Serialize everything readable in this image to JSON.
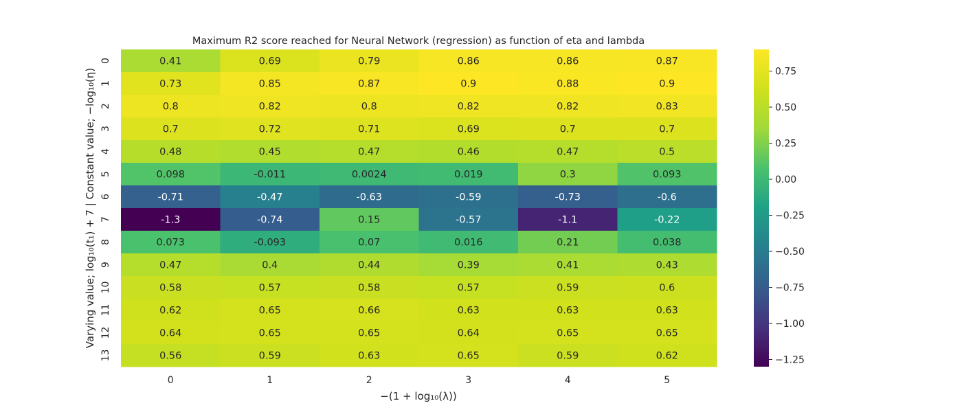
{
  "chart_data": {
    "type": "heatmap",
    "title": "Maximum R2 score reached for Neural Network (regression) as function of eta and lambda",
    "xlabel": "−(1 + log₁₀(λ))",
    "ylabel": "Varying value; log₁₀(t₁) + 7 | Constant value; −log₁₀(η)",
    "x_categories": [
      "0",
      "1",
      "2",
      "3",
      "4",
      "5"
    ],
    "y_categories": [
      "0",
      "1",
      "2",
      "3",
      "4",
      "5",
      "6",
      "7",
      "8",
      "9",
      "10",
      "11",
      "12",
      "13"
    ],
    "values": [
      [
        0.41,
        0.69,
        0.79,
        0.86,
        0.86,
        0.87
      ],
      [
        0.73,
        0.85,
        0.87,
        0.9,
        0.88,
        0.9
      ],
      [
        0.8,
        0.82,
        0.8,
        0.82,
        0.82,
        0.83
      ],
      [
        0.7,
        0.72,
        0.71,
        0.69,
        0.7,
        0.7
      ],
      [
        0.48,
        0.45,
        0.47,
        0.46,
        0.47,
        0.5
      ],
      [
        0.098,
        -0.011,
        0.0024,
        0.019,
        0.3,
        0.093
      ],
      [
        -0.71,
        -0.47,
        -0.63,
        -0.59,
        -0.73,
        -0.6
      ],
      [
        -1.3,
        -0.74,
        0.15,
        -0.57,
        -1.1,
        -0.22
      ],
      [
        0.073,
        -0.093,
        0.07,
        0.016,
        0.21,
        0.038
      ],
      [
        0.47,
        0.4,
        0.44,
        0.39,
        0.41,
        0.43
      ],
      [
        0.58,
        0.57,
        0.58,
        0.57,
        0.59,
        0.6
      ],
      [
        0.62,
        0.65,
        0.66,
        0.63,
        0.63,
        0.63
      ],
      [
        0.64,
        0.65,
        0.65,
        0.64,
        0.65,
        0.65
      ],
      [
        0.56,
        0.59,
        0.63,
        0.65,
        0.59,
        0.62
      ]
    ],
    "colormap": "viridis",
    "vmin": -1.3,
    "vmax": 0.9,
    "colorbar_ticks": [
      0.75,
      0.5,
      0.25,
      0.0,
      -0.25,
      -0.5,
      -0.75,
      -1.0,
      -1.25
    ],
    "colorbar_tick_labels": [
      "0.75",
      "0.50",
      "0.25",
      "0.00",
      "−0.25",
      "−0.50",
      "−0.75",
      "−1.00",
      "−1.25"
    ],
    "annotation_colors": {
      "dark_cell": "#ffffff",
      "light_cell": "#262626"
    }
  }
}
